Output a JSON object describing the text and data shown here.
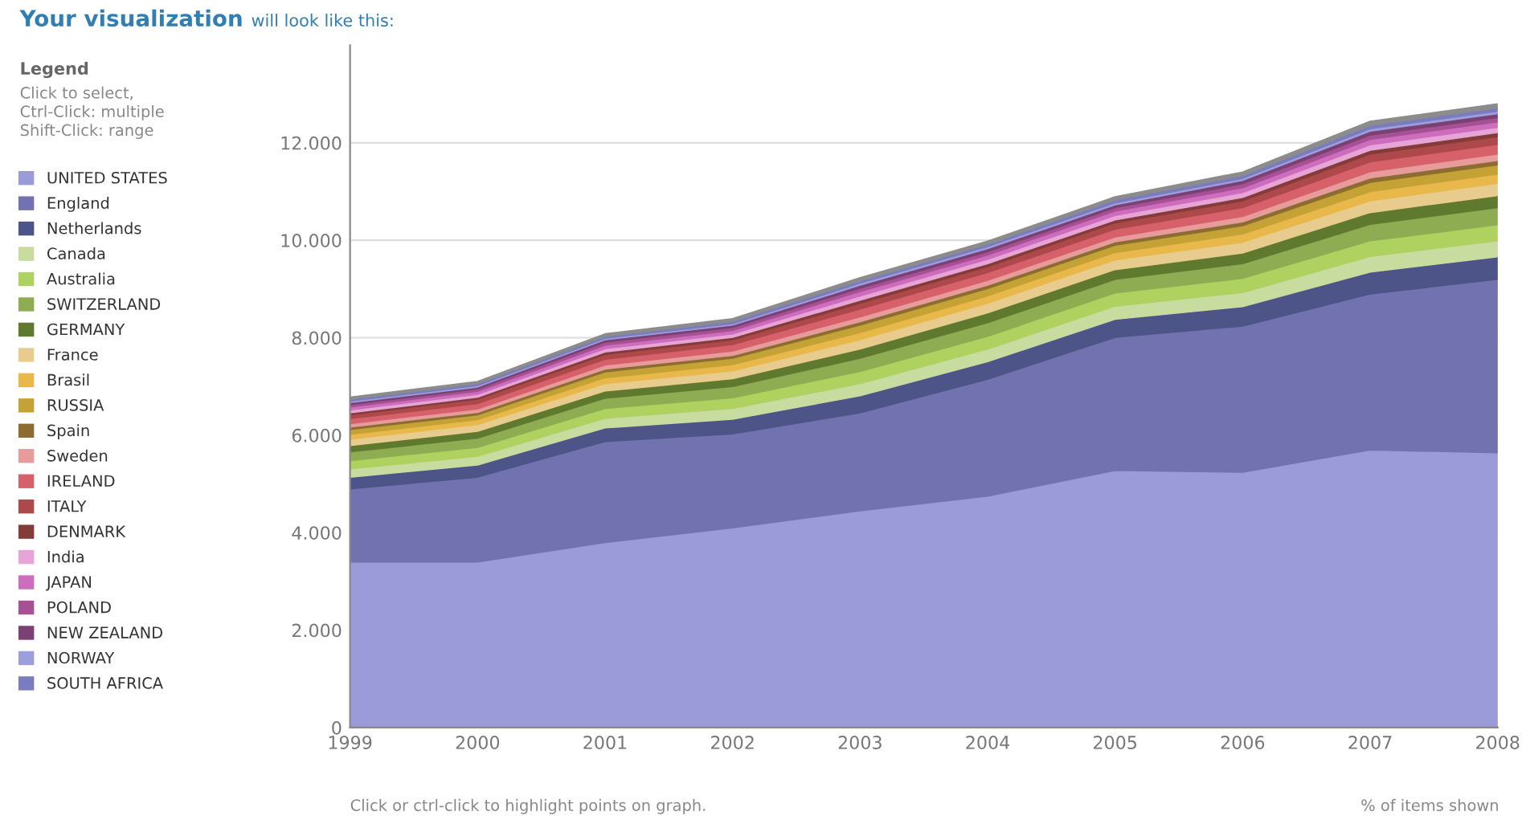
{
  "chart_data": {
    "type": "area",
    "stacked": true,
    "title": "Your visualization",
    "subtitle": "will look like this:",
    "legend_title": "Legend",
    "annotations": [
      "Click to select,\nCtrl-Click: multiple\nShift-Click: range",
      "Click or ctrl-click to highlight points on graph.",
      "% of items shown"
    ],
    "x": [
      1999,
      2000,
      2001,
      2002,
      2003,
      2004,
      2005,
      2006,
      2007,
      2008
    ],
    "xlim": [
      1999,
      2008
    ],
    "xticks": [
      1999,
      2000,
      2001,
      2002,
      2003,
      2004,
      2005,
      2006,
      2007,
      2008
    ],
    "ylim": [
      0,
      14000
    ],
    "yticks": [
      {
        "value": 0,
        "label": "0"
      },
      {
        "value": 2000,
        "label": "2.000"
      },
      {
        "value": 4000,
        "label": "4.000"
      },
      {
        "value": 6000,
        "label": "6.000"
      },
      {
        "value": 8000,
        "label": "8.000"
      },
      {
        "value": 10000,
        "label": "10.000"
      },
      {
        "value": 12000,
        "label": "12.000"
      }
    ],
    "grid": "y",
    "legend": "left",
    "series": [
      {
        "name": "UNITED STATES",
        "color": "#9b9bd9",
        "values": [
          3400,
          3400,
          3800,
          4100,
          4450,
          4750,
          5280,
          5240,
          5700,
          5640
        ]
      },
      {
        "name": "England",
        "color": "#7272b0",
        "values": [
          1500,
          1740,
          2070,
          1930,
          2010,
          2400,
          2730,
          3000,
          3200,
          3560
        ]
      },
      {
        "name": "Netherlands",
        "color": "#4d5488",
        "values": [
          240,
          250,
          280,
          300,
          350,
          360,
          370,
          400,
          450,
          460
        ]
      },
      {
        "name": "Canada",
        "color": "#c7dc9e",
        "values": [
          170,
          180,
          200,
          220,
          250,
          260,
          270,
          290,
          320,
          330
        ]
      },
      {
        "name": "Australia",
        "color": "#aed15f",
        "values": [
          170,
          180,
          200,
          220,
          250,
          260,
          270,
          290,
          320,
          330
        ]
      },
      {
        "name": "SWITZERLAND",
        "color": "#8ead53",
        "values": [
          180,
          190,
          210,
          230,
          270,
          280,
          280,
          300,
          340,
          350
        ]
      },
      {
        "name": "GERMANY",
        "color": "#5f7a2f",
        "values": [
          130,
          140,
          150,
          160,
          190,
          200,
          200,
          220,
          240,
          250
        ]
      },
      {
        "name": "France",
        "color": "#e8cc8e",
        "values": [
          130,
          140,
          150,
          160,
          190,
          200,
          200,
          220,
          240,
          250
        ]
      },
      {
        "name": "Brasil",
        "color": "#e8b84a",
        "values": [
          100,
          100,
          120,
          130,
          150,
          150,
          150,
          170,
          190,
          190
        ]
      },
      {
        "name": "RUSSIA",
        "color": "#c4a236",
        "values": [
          100,
          100,
          120,
          130,
          150,
          150,
          150,
          170,
          190,
          190
        ]
      },
      {
        "name": "Spain",
        "color": "#8c6d31",
        "values": [
          50,
          50,
          60,
          60,
          70,
          70,
          70,
          80,
          90,
          90
        ]
      },
      {
        "name": "Sweden",
        "color": "#e79b9b",
        "values": [
          70,
          70,
          80,
          90,
          100,
          100,
          100,
          110,
          130,
          130
        ]
      },
      {
        "name": "IRELAND",
        "color": "#d6616b",
        "values": [
          100,
          110,
          120,
          130,
          160,
          160,
          160,
          180,
          200,
          200
        ]
      },
      {
        "name": "ITALY",
        "color": "#ad494a",
        "values": [
          80,
          90,
          100,
          100,
          120,
          120,
          130,
          140,
          160,
          160
        ]
      },
      {
        "name": "DENMARK",
        "color": "#843c39",
        "values": [
          40,
          40,
          50,
          50,
          60,
          60,
          60,
          70,
          80,
          80
        ]
      },
      {
        "name": "India",
        "color": "#e7a4d6",
        "values": [
          60,
          60,
          70,
          70,
          90,
          90,
          90,
          100,
          110,
          110
        ]
      },
      {
        "name": "JAPAN",
        "color": "#ce6dbd",
        "values": [
          60,
          60,
          70,
          70,
          90,
          90,
          90,
          100,
          110,
          110
        ]
      },
      {
        "name": "POLAND",
        "color": "#a55194",
        "values": [
          50,
          50,
          60,
          60,
          70,
          70,
          70,
          80,
          90,
          90
        ]
      },
      {
        "name": "NEW ZEALAND",
        "color": "#7b4173",
        "values": [
          40,
          40,
          50,
          50,
          60,
          60,
          60,
          70,
          80,
          80
        ]
      },
      {
        "name": "NORWAY",
        "color": "#9c9ede",
        "values": [
          30,
          30,
          30,
          30,
          40,
          40,
          40,
          40,
          50,
          50
        ]
      },
      {
        "name": "SOUTH AFRICA",
        "color": "#7b7bbf",
        "values": [
          40,
          40,
          40,
          50,
          50,
          50,
          60,
          60,
          70,
          70
        ]
      },
      {
        "color": "#8c8c8c",
        "values": [
          40,
          40,
          50,
          50,
          60,
          60,
          60,
          70,
          80,
          80
        ]
      }
    ]
  }
}
